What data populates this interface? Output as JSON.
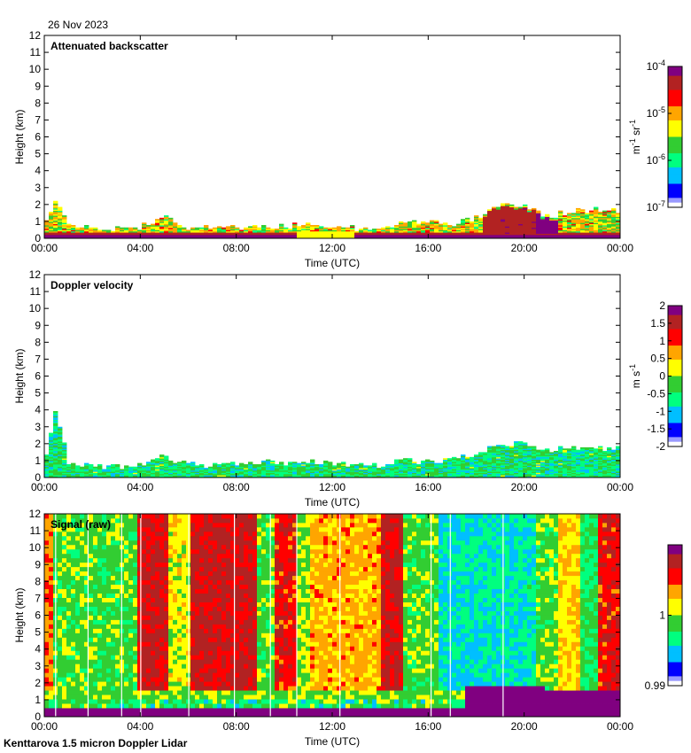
{
  "header": {
    "date": "26 Nov 2023"
  },
  "footer": {
    "instrument": "Kenttarova 1.5 micron Doppler Lidar"
  },
  "palette": [
    "#ffffff",
    "#9999ff",
    "#0000ff",
    "#00bfff",
    "#00ff7f",
    "#32cd32",
    "#ffff00",
    "#ffa500",
    "#ff0000",
    "#b22222",
    "#800080"
  ],
  "chart_data": [
    {
      "type": "heatmap",
      "title": "Attenuated backscatter",
      "xlabel": "Time (UTC)",
      "ylabel": "Height (km)",
      "xlim": [
        0,
        24
      ],
      "ylim": [
        0,
        12
      ],
      "xticks": [
        "00:00",
        "04:00",
        "08:00",
        "12:00",
        "16:00",
        "20:00",
        "00:00"
      ],
      "yticks": [
        "0",
        "1",
        "2",
        "3",
        "4",
        "5",
        "6",
        "7",
        "8",
        "9",
        "10",
        "11",
        "12"
      ],
      "colorbar": {
        "scale": "log",
        "ticks": [
          {
            "base": "10",
            "exp": "-4"
          },
          {
            "base": "10",
            "exp": "-5"
          },
          {
            "base": "10",
            "exp": "-6"
          },
          {
            "base": "10",
            "exp": "-7"
          }
        ],
        "unit": {
          "a": "m",
          "ae": "-1",
          "b": " sr",
          "be": "-1"
        }
      },
      "boundary_layer_top_km": [
        [
          0,
          0.7
        ],
        [
          0.5,
          2.3
        ],
        [
          1,
          0.7
        ],
        [
          2,
          0.6
        ],
        [
          3,
          0.5
        ],
        [
          3.5,
          0.8
        ],
        [
          4,
          0.6
        ],
        [
          5,
          1.3
        ],
        [
          6,
          0.6
        ],
        [
          7,
          0.6
        ],
        [
          8,
          0.6
        ],
        [
          9,
          0.7
        ],
        [
          10,
          0.7
        ],
        [
          11,
          0.8
        ],
        [
          12,
          0.7
        ],
        [
          13,
          0.6
        ],
        [
          14,
          0.6
        ],
        [
          15,
          0.9
        ],
        [
          16,
          0.9
        ],
        [
          17,
          0.8
        ],
        [
          18,
          1.2
        ],
        [
          19,
          2.0
        ],
        [
          20,
          2.0
        ],
        [
          21,
          1.2
        ],
        [
          22,
          1.6
        ],
        [
          23,
          1.7
        ],
        [
          24,
          1.6
        ]
      ]
    },
    {
      "type": "heatmap",
      "title": "Doppler velocity",
      "xlabel": "Time (UTC)",
      "ylabel": "Height (km)",
      "xlim": [
        0,
        24
      ],
      "ylim": [
        0,
        12
      ],
      "xticks": [
        "00:00",
        "04:00",
        "08:00",
        "12:00",
        "16:00",
        "20:00",
        "00:00"
      ],
      "yticks": [
        "0",
        "1",
        "2",
        "3",
        "4",
        "5",
        "6",
        "7",
        "8",
        "9",
        "10",
        "11",
        "12"
      ],
      "colorbar": {
        "scale": "linear",
        "ticks": [
          "2",
          "1.5",
          "1",
          "0.5",
          "0",
          "-0.5",
          "-1",
          "-1.5",
          "-2"
        ],
        "unit": {
          "a": "m",
          "b": " s",
          "be": "-1"
        }
      },
      "boundary_layer_top_km": [
        [
          0,
          0.7
        ],
        [
          0.5,
          4.0
        ],
        [
          1,
          0.8
        ],
        [
          2,
          0.7
        ],
        [
          3,
          0.6
        ],
        [
          4,
          0.7
        ],
        [
          5,
          1.2
        ],
        [
          6,
          0.7
        ],
        [
          7,
          0.7
        ],
        [
          8,
          0.8
        ],
        [
          9,
          0.9
        ],
        [
          10,
          0.8
        ],
        [
          11,
          0.9
        ],
        [
          12,
          0.8
        ],
        [
          13,
          0.7
        ],
        [
          14,
          0.7
        ],
        [
          15,
          1.0
        ],
        [
          16,
          0.9
        ],
        [
          17,
          1.0
        ],
        [
          18,
          1.3
        ],
        [
          19,
          2.0
        ],
        [
          20,
          1.9
        ],
        [
          21,
          1.6
        ],
        [
          22,
          1.8
        ],
        [
          23,
          1.7
        ],
        [
          24,
          1.7
        ]
      ]
    },
    {
      "type": "heatmap",
      "title": "Signal (raw)",
      "xlabel": "Time (UTC)",
      "ylabel": "Height (km)",
      "xlim": [
        0,
        24
      ],
      "ylim": [
        0,
        12
      ],
      "xticks": [
        "00:00",
        "04:00",
        "08:00",
        "12:00",
        "16:00",
        "20:00",
        "00:00"
      ],
      "yticks": [
        "0",
        "1",
        "2",
        "3",
        "4",
        "5",
        "6",
        "7",
        "8",
        "9",
        "10",
        "11",
        "12"
      ],
      "colorbar": {
        "scale": "linear",
        "ticks": [
          "1",
          "0.99"
        ],
        "range": [
          0.99,
          1.01
        ]
      },
      "time_bands": [
        {
          "start": 0.0,
          "end": 0.3,
          "level": 0.7
        },
        {
          "start": 0.3,
          "end": 3.9,
          "level": 0.45
        },
        {
          "start": 3.9,
          "end": 5.1,
          "level": 0.85
        },
        {
          "start": 5.1,
          "end": 6.1,
          "level": 0.55
        },
        {
          "start": 6.1,
          "end": 8.9,
          "level": 0.85
        },
        {
          "start": 8.9,
          "end": 9.6,
          "level": 0.45
        },
        {
          "start": 9.6,
          "end": 10.6,
          "level": 0.8
        },
        {
          "start": 10.6,
          "end": 11.0,
          "level": 0.5
        },
        {
          "start": 11.0,
          "end": 14.0,
          "level": 0.65
        },
        {
          "start": 14.0,
          "end": 15.0,
          "level": 0.85
        },
        {
          "start": 15.0,
          "end": 16.4,
          "level": 0.45
        },
        {
          "start": 16.4,
          "end": 19.5,
          "level": 0.28
        },
        {
          "start": 19.5,
          "end": 20.5,
          "level": 0.3
        },
        {
          "start": 20.5,
          "end": 21.5,
          "level": 0.45
        },
        {
          "start": 21.5,
          "end": 22.3,
          "level": 0.6
        },
        {
          "start": 22.3,
          "end": 23.0,
          "level": 0.4
        },
        {
          "start": 23.0,
          "end": 24.0,
          "level": 0.8
        }
      ]
    }
  ]
}
